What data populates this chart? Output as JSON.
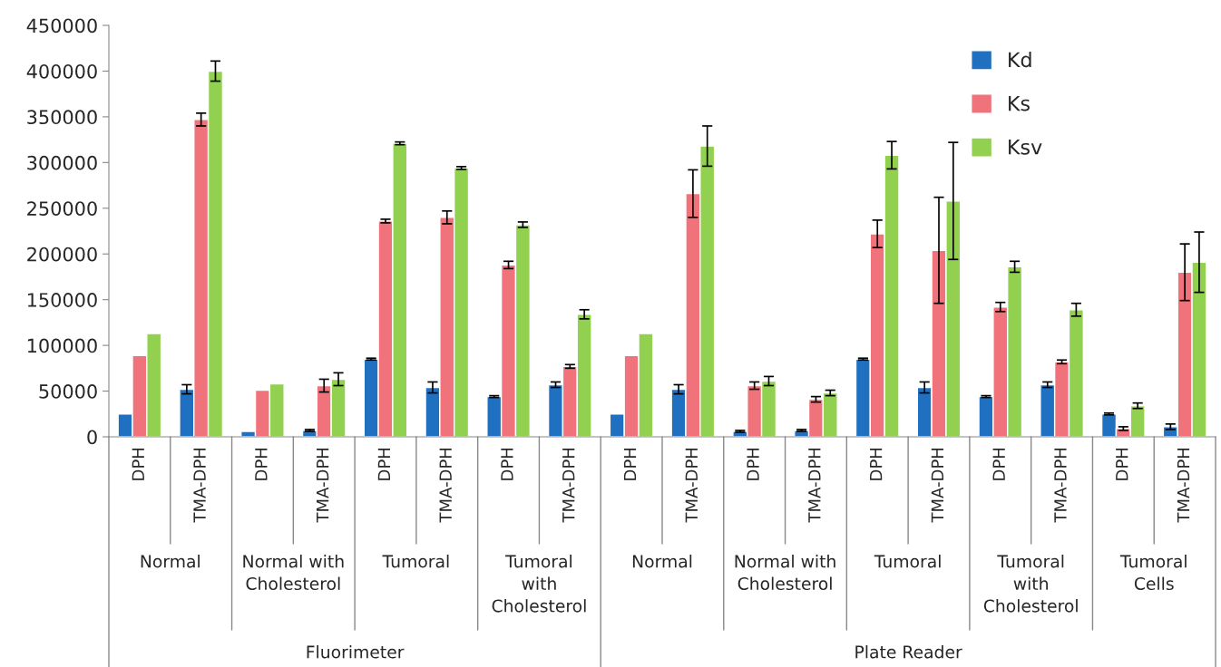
{
  "chart_data": {
    "type": "bar",
    "categories": [
      "DPH",
      "TMA-DPH",
      "DPH",
      "TMA-DPH",
      "DPH",
      "TMA-DPH",
      "DPH",
      "TMA-DPH",
      "DPH",
      "TMA-DPH",
      "DPH",
      "TMA-DPH",
      "DPH",
      "TMA-DPH",
      "DPH",
      "TMA-DPH",
      "DPH",
      "TMA-DPH"
    ],
    "series": [
      {
        "name": "Kd",
        "color": "#1f70c1",
        "values": [
          25000,
          52000,
          6000,
          7000,
          85000,
          54000,
          44000,
          57000,
          25000,
          52000,
          6000,
          7000,
          85000,
          54000,
          44000,
          57000,
          25000,
          11000
        ],
        "errors": [
          null,
          5000,
          null,
          1000,
          1000,
          6000,
          1000,
          3000,
          null,
          5000,
          1000,
          1000,
          1000,
          6000,
          1000,
          3000,
          1000,
          3000
        ]
      },
      {
        "name": "Ks",
        "color": "#f0727a",
        "values": [
          89000,
          347000,
          51000,
          56000,
          236000,
          240000,
          188000,
          77000,
          89000,
          266000,
          56000,
          41000,
          222000,
          204000,
          142000,
          82000,
          9000,
          180000
        ],
        "errors": [
          null,
          7000,
          null,
          7000,
          2000,
          7000,
          4000,
          2000,
          null,
          26000,
          4000,
          3000,
          15000,
          58000,
          5000,
          2000,
          2000,
          31000
        ]
      },
      {
        "name": "Ksv",
        "color": "#92d050",
        "values": [
          113000,
          400000,
          58000,
          63000,
          321000,
          294000,
          232000,
          134000,
          113000,
          318000,
          61000,
          48000,
          308000,
          258000,
          186000,
          139000,
          34000,
          191000
        ],
        "errors": [
          null,
          11000,
          null,
          7000,
          1500,
          1500,
          3000,
          5000,
          null,
          22000,
          5000,
          3000,
          15000,
          64000,
          6000,
          7000,
          3000,
          33000
        ]
      }
    ],
    "ylim": [
      0,
      450000
    ],
    "yticks": [
      0,
      50000,
      100000,
      150000,
      200000,
      250000,
      300000,
      350000,
      400000,
      450000
    ],
    "legend": "top right",
    "annotations": [
      "Normal",
      "Normal with\nCholesterol",
      "Tumoral",
      "Tumoral\nwith\nCholesterol",
      "Normal",
      "Normal with\nCholesterol",
      "Tumoral",
      "Tumoral\nwith\nCholesterol",
      "Tumoral\nCells",
      "Fluorimeter",
      "Plate Reader"
    ]
  }
}
